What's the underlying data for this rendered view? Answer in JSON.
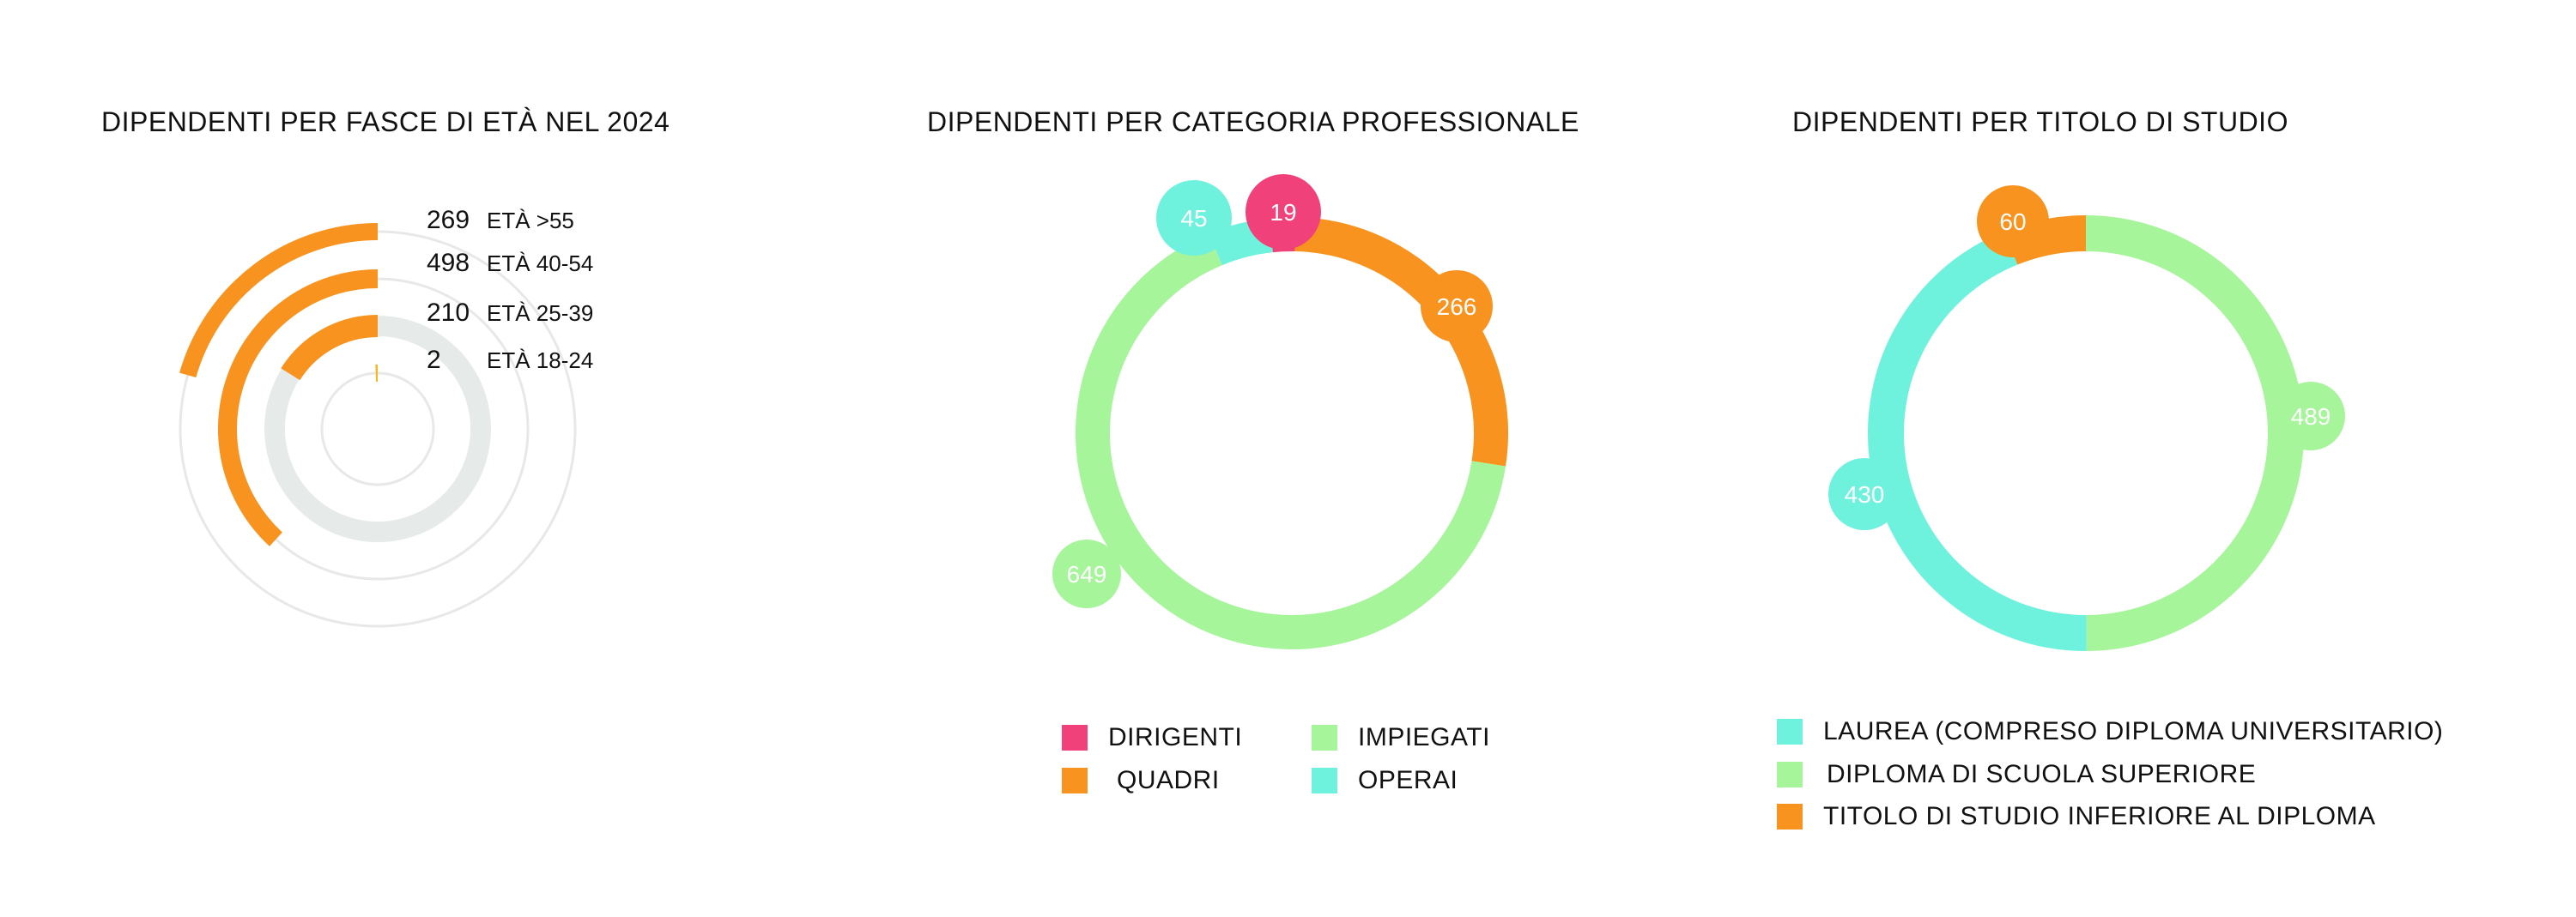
{
  "colors": {
    "orange_dark": "#f7931e",
    "orange_light": "#fbc59a",
    "pink": "#f0417a",
    "green": "#a6f59a",
    "cyan": "#6ff2dd",
    "track_grey": "#e6ebe9",
    "track_light": "#e8e8e8"
  },
  "chart_data": [
    {
      "type": "radial-bar",
      "title": "DIPENDENTI PER FASCE DI ETÀ NEL 2024",
      "rings": [
        {
          "category": "ETÀ >55",
          "value": 269
        },
        {
          "category": "ETÀ 40-54",
          "value": 498
        },
        {
          "category": "ETÀ 25-39",
          "value": 210
        },
        {
          "category": "ETÀ 18-24",
          "value": 2
        }
      ]
    },
    {
      "type": "donut",
      "title": "DIPENDENTI PER CATEGORIA PROFESSIONALE",
      "slices": [
        {
          "label": "DIRIGENTI",
          "value": 19,
          "color": "#f0417a"
        },
        {
          "label": "QUADRI",
          "value": 266,
          "color": "#f7931e"
        },
        {
          "label": "IMPIEGATI",
          "value": 649,
          "color": "#a6f59a"
        },
        {
          "label": "OPERAI",
          "value": 45,
          "color": "#6ff2dd"
        }
      ]
    },
    {
      "type": "donut",
      "title": "DIPENDENTI PER TITOLO DI STUDIO",
      "slices": [
        {
          "label": "DIPLOMA DI SCUOLA SUPERIORE",
          "value": 489,
          "color": "#a6f59a"
        },
        {
          "label": "LAUREA (COMPRESO DIPLOMA UNIVERSITARIO)",
          "value": 430,
          "color": "#6ff2dd"
        },
        {
          "label": "TITOLO DI STUDIO INFERIORE AL DIPLOMA",
          "value": 60,
          "color": "#f7931e"
        }
      ]
    }
  ]
}
